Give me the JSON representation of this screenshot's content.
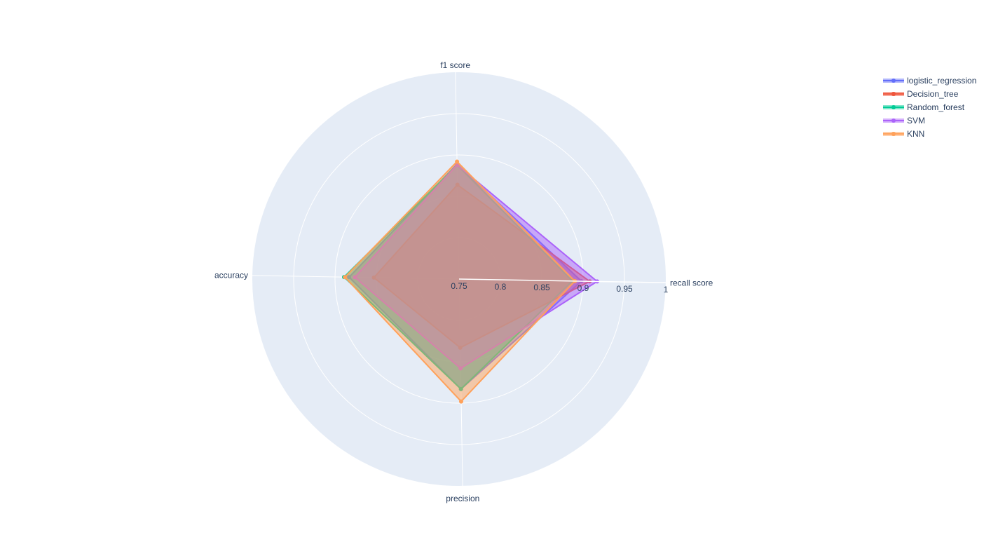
{
  "chart_data": {
    "type": "radar",
    "axes": [
      "recall score",
      "f1 score",
      "accuracy",
      "precision"
    ],
    "radial_range": [
      0.75,
      1
    ],
    "radial_ticks": [
      0.75,
      0.8,
      0.85,
      0.9,
      0.95,
      1
    ],
    "radial_tick_labels": [
      "0.75",
      "0.8",
      "0.85",
      "0.9",
      "0.95",
      "1"
    ],
    "legend_position": "top-right",
    "series": [
      {
        "name": "logistic_regression",
        "color": "#636efa",
        "values": [
          0.898,
          0.889,
          0.883,
          0.883
        ]
      },
      {
        "name": "Decision_tree",
        "color": "#ef553b",
        "values": [
          0.908,
          0.864,
          0.853,
          0.833
        ]
      },
      {
        "name": "Random_forest",
        "color": "#00cc96",
        "values": [
          0.887,
          0.888,
          0.889,
          0.883
        ]
      },
      {
        "name": "SVM",
        "color": "#ab63fa",
        "values": [
          0.917,
          0.888,
          0.876,
          0.858
        ]
      },
      {
        "name": "KNN",
        "color": "#ffa15a",
        "values": [
          0.89,
          0.892,
          0.888,
          0.898
        ]
      }
    ]
  }
}
